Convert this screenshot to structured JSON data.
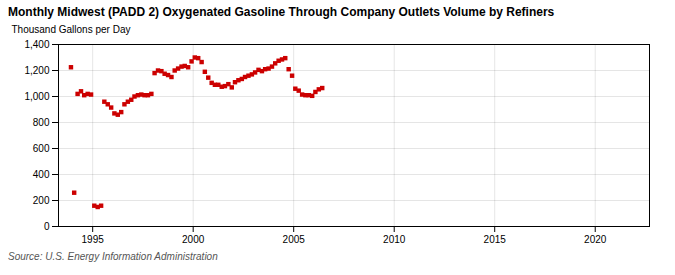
{
  "chart_data": {
    "type": "scatter",
    "title": "Monthly Midwest (PADD 2) Oxygenated Gasoline Through Company Outlets Volume by Refiners",
    "ylabel": "Thousand Gallons per Day",
    "caption": "Source: U.S. Energy Information Administration",
    "color": "#cc0000",
    "marker": "square",
    "grid": true,
    "xlim": [
      1993.3,
      2022.7
    ],
    "ylim": [
      0,
      1400
    ],
    "xticks": [
      1995,
      2000,
      2005,
      2010,
      2015,
      2020
    ],
    "yticks": [
      0,
      200,
      400,
      600,
      800,
      {
        "value": 1000,
        "label": "1,000"
      },
      {
        "value": 1200,
        "label": "1,200"
      },
      {
        "value": 1400,
        "label": "1,400"
      }
    ],
    "x": [
      1993.92,
      1994.08,
      1994.25,
      1994.42,
      1994.58,
      1994.75,
      1994.92,
      1995.08,
      1995.25,
      1995.42,
      1995.58,
      1995.75,
      1995.92,
      1996.08,
      1996.25,
      1996.42,
      1996.58,
      1996.75,
      1996.92,
      1997.08,
      1997.25,
      1997.42,
      1997.58,
      1997.75,
      1997.92,
      1998.08,
      1998.25,
      1998.42,
      1998.58,
      1998.75,
      1998.92,
      1999.08,
      1999.25,
      1999.42,
      1999.58,
      1999.75,
      1999.92,
      2000.08,
      2000.25,
      2000.42,
      2000.58,
      2000.75,
      2000.92,
      2001.08,
      2001.25,
      2001.42,
      2001.58,
      2001.75,
      2001.92,
      2002.08,
      2002.25,
      2002.42,
      2002.58,
      2002.75,
      2002.92,
      2003.08,
      2003.25,
      2003.42,
      2003.58,
      2003.75,
      2003.92,
      2004.08,
      2004.25,
      2004.42,
      2004.58,
      2004.75,
      2004.92,
      2005.08,
      2005.25,
      2005.42,
      2005.58,
      2005.75,
      2005.92,
      2006.08,
      2006.25,
      2006.42
    ],
    "values": [
      1225,
      260,
      1020,
      1040,
      1010,
      1020,
      1015,
      160,
      150,
      160,
      960,
      940,
      915,
      870,
      860,
      880,
      940,
      960,
      975,
      1000,
      1010,
      1015,
      1010,
      1010,
      1020,
      1180,
      1200,
      1195,
      1175,
      1165,
      1150,
      1200,
      1215,
      1230,
      1235,
      1225,
      1270,
      1300,
      1295,
      1265,
      1190,
      1145,
      1105,
      1090,
      1090,
      1075,
      1080,
      1095,
      1070,
      1110,
      1125,
      1135,
      1150,
      1160,
      1170,
      1185,
      1205,
      1195,
      1210,
      1215,
      1230,
      1255,
      1275,
      1285,
      1295,
      1210,
      1160,
      1060,
      1045,
      1015,
      1010,
      1010,
      1005,
      1035,
      1055,
      1065
    ]
  }
}
